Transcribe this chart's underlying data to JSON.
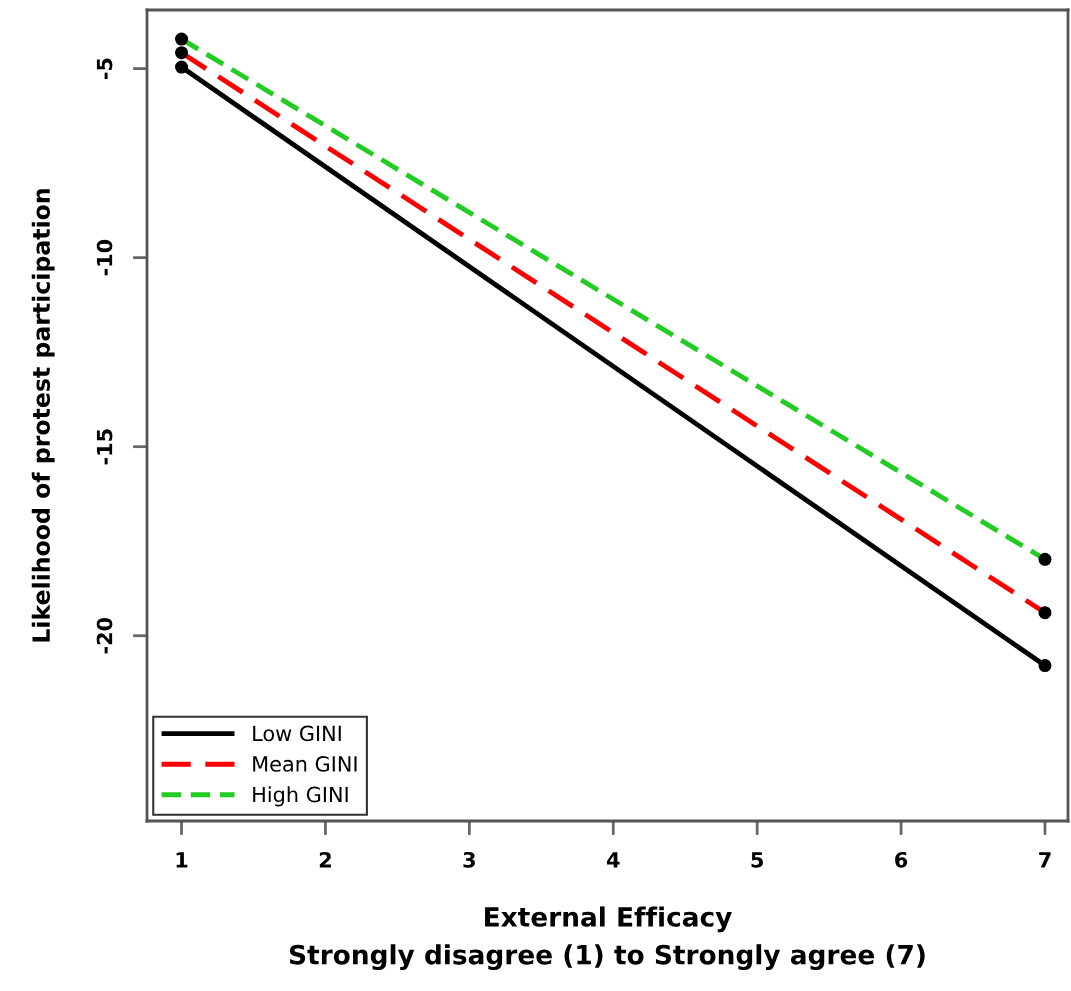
{
  "chart_data": {
    "type": "line",
    "xlabel": "External Efficacy\nStrongly disagree (1) to Strongly agree (7)",
    "ylabel": "Likelihood of protest participation",
    "x": [
      1,
      7
    ],
    "series": [
      {
        "name": "Low GINI",
        "color": "#000000",
        "colors": [
          "#000000",
          "#000000"
        ],
        "line_style": "solid",
        "values": [
          -4.96,
          -20.79
        ]
      },
      {
        "name": "Mean GINI",
        "color": "#ff0000",
        "colors": [
          "#000000",
          "#000000"
        ],
        "line_style": "dashed",
        "values": [
          -4.58,
          -19.39
        ]
      },
      {
        "name": "High GINI",
        "color": "#22cc22",
        "colors": [
          "#000000",
          "#000000"
        ],
        "line_style": "dashed",
        "values": [
          -4.22,
          -17.98
        ]
      }
    ],
    "xlim": [
      0.76,
      7.16
    ],
    "ylim": [
      -24.9,
      -3.45
    ],
    "xticks": [
      1,
      2,
      3,
      4,
      5,
      6,
      7
    ],
    "yticks": [
      -5,
      -10,
      -15,
      -20
    ],
    "marker": "circle",
    "grid": false,
    "legend": "bottom left"
  }
}
